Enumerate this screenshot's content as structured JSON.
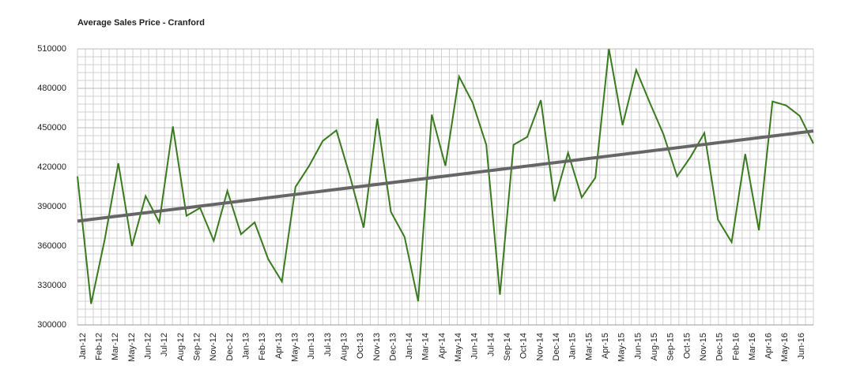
{
  "chart_data": {
    "type": "line",
    "title": "Average Sales Price - Cranford",
    "series": [
      {
        "name": null,
        "color": "#3a7a1e",
        "values": [
          413000,
          316000,
          365000,
          423000,
          360000,
          398000,
          378000,
          451000,
          383000,
          389000,
          364000,
          402000,
          369000,
          378000,
          350000,
          333000,
          405000,
          421000,
          440000,
          448000,
          413000,
          374000,
          457000,
          386000,
          367000,
          318000,
          460000,
          421000,
          489000,
          469000,
          437000,
          323000,
          437000,
          443000,
          471000,
          394000,
          431000,
          397000,
          412000,
          510000,
          452000,
          494000,
          469000,
          445000,
          413000,
          428000,
          446000,
          380000,
          363000,
          430000,
          372000,
          470000,
          467000,
          459000,
          438000
        ]
      }
    ],
    "trendline": {
      "color": "#666666",
      "values": [
        379000,
        447500
      ]
    },
    "xticks": [
      "Jan-12",
      "Feb-12",
      "Mar-12",
      "May-12",
      "Jun-12",
      "Jul-12",
      "Aug-12",
      "Sep-12",
      "Nov-12",
      "Dec-12",
      "Jan-13",
      "Feb-13",
      "Apr-13",
      "May-13",
      "Jun-13",
      "Jul-13",
      "Aug-13",
      "Oct-13",
      "Nov-13",
      "Dec-13",
      "Jan-14",
      "Mar-14",
      "Apr-14",
      "May-14",
      "Jun-14",
      "Jul-14",
      "Sep-14",
      "Oct-14",
      "Nov-14",
      "Dec-14",
      "Jan-15",
      "Mar-15",
      "Apr-15",
      "May-15",
      "Jun-15",
      "Aug-15",
      "Sep-15",
      "Oct-15",
      "Nov-15",
      "Dec-15",
      "Feb-16",
      "Mar-16",
      "Apr-16",
      "May-16",
      "Jun-16"
    ],
    "ylim": [
      300000,
      510000
    ],
    "yticks": [
      300000,
      330000,
      360000,
      390000,
      420000,
      450000,
      480000,
      510000
    ],
    "grid": true
  }
}
